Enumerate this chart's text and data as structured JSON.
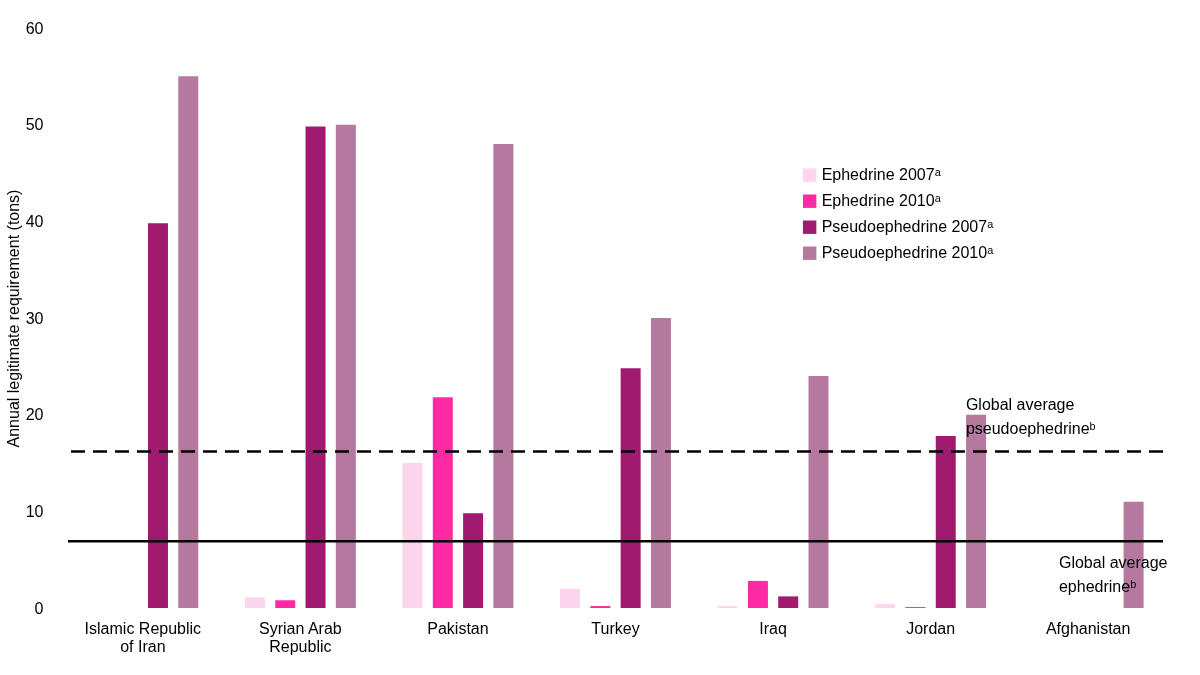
{
  "chart_data": {
    "type": "bar",
    "ylabel": "Annual legitimate requirement (tons)",
    "categories": [
      "Islamic Republic of Iran",
      "Syrian Arab Republic",
      "Pakistan",
      "Turkey",
      "Iraq",
      "Jordan",
      "Afghanistan"
    ],
    "series": [
      {
        "name": "Ephedrine 2007ᵃ",
        "color": "#fdd6ec",
        "values": [
          null,
          1.1,
          15,
          2,
          0.2,
          0.4,
          null
        ]
      },
      {
        "name": "Ephedrine 2010ᵃ",
        "color": "#fe2aa3",
        "values": [
          null,
          0.8,
          21.8,
          0.2,
          2.8,
          0.1,
          null
        ]
      },
      {
        "name": "Pseudoephedrine 2007ᵃ",
        "color": "#a01b70",
        "values": [
          39.8,
          49.8,
          9.8,
          24.8,
          1.2,
          17.8,
          null
        ]
      },
      {
        "name": "Pseudoephedrine 2010ᵃ",
        "color": "#b5799f",
        "values": [
          55,
          50,
          48,
          30,
          24,
          20,
          11
        ]
      }
    ],
    "ylim": [
      0,
      60
    ],
    "yticks": [
      0,
      10,
      20,
      30,
      40,
      50,
      60
    ],
    "grid": false,
    "legend": "right",
    "ref_lines": [
      {
        "axis": "y",
        "value": 16.2,
        "label": "Global average pseudoephedrineᵇ",
        "line_style": "dashed",
        "color": "#000000"
      },
      {
        "axis": "y",
        "value": 6.9,
        "label": "Global average ephedrineᵇ",
        "line_style": "solid",
        "color": "#000000"
      }
    ]
  }
}
